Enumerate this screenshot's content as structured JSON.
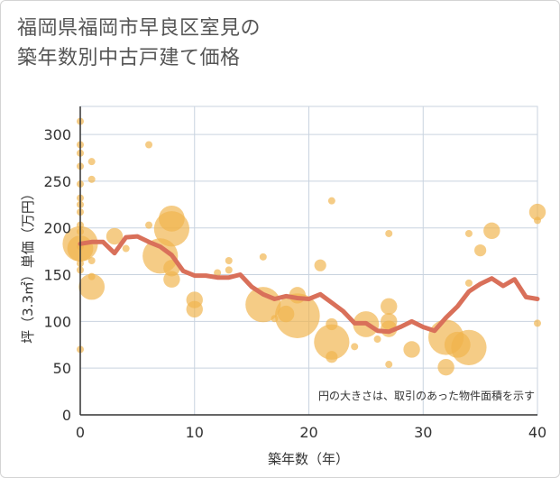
{
  "title": {
    "line1": "福岡県福岡市早良区室見の",
    "line2": "築年数別中古戸建て価格"
  },
  "chart_data": {
    "type": "scatter",
    "xlabel": "築年数（年）",
    "ylabel": "坪（3.3㎡）単価（万円）",
    "xlim": [
      0,
      40
    ],
    "ylim": [
      0,
      330
    ],
    "x_ticks": [
      0,
      10,
      20,
      30,
      40
    ],
    "y_ticks": [
      0,
      50,
      100,
      150,
      200,
      250,
      300
    ],
    "note": "円の大きさは、取引のあった物件面積を示す",
    "colors": {
      "bubble": "#f0b44c",
      "line": "#d9705a",
      "grid": "#c9d3df"
    },
    "bubbles": [
      {
        "x": 0,
        "y": 314,
        "s": 1
      },
      {
        "x": 0,
        "y": 289,
        "s": 1
      },
      {
        "x": 0,
        "y": 280,
        "s": 1
      },
      {
        "x": 0,
        "y": 266,
        "s": 1
      },
      {
        "x": 0,
        "y": 247,
        "s": 1
      },
      {
        "x": 0,
        "y": 232,
        "s": 1
      },
      {
        "x": 0,
        "y": 225,
        "s": 1
      },
      {
        "x": 0,
        "y": 217,
        "s": 1
      },
      {
        "x": 0,
        "y": 203,
        "s": 1
      },
      {
        "x": 0,
        "y": 196,
        "s": 1
      },
      {
        "x": 0,
        "y": 180,
        "s": 1
      },
      {
        "x": 0,
        "y": 162,
        "s": 1
      },
      {
        "x": 0,
        "y": 155,
        "s": 1
      },
      {
        "x": 0,
        "y": 70,
        "s": 1
      },
      {
        "x": 0,
        "y": 183,
        "s": 4
      },
      {
        "x": 0,
        "y": 178,
        "s": 3
      },
      {
        "x": 1,
        "y": 271,
        "s": 1
      },
      {
        "x": 1,
        "y": 252,
        "s": 1
      },
      {
        "x": 1,
        "y": 165,
        "s": 1
      },
      {
        "x": 1,
        "y": 148,
        "s": 1
      },
      {
        "x": 1,
        "y": 137,
        "s": 3
      },
      {
        "x": 3,
        "y": 191,
        "s": 2
      },
      {
        "x": 4,
        "y": 178,
        "s": 1
      },
      {
        "x": 6,
        "y": 289,
        "s": 1
      },
      {
        "x": 6,
        "y": 203,
        "s": 1
      },
      {
        "x": 7,
        "y": 170,
        "s": 4
      },
      {
        "x": 8,
        "y": 210,
        "s": 3
      },
      {
        "x": 8,
        "y": 199,
        "s": 4
      },
      {
        "x": 8,
        "y": 157,
        "s": 2
      },
      {
        "x": 8,
        "y": 145,
        "s": 2
      },
      {
        "x": 10,
        "y": 123,
        "s": 2
      },
      {
        "x": 10,
        "y": 113,
        "s": 2
      },
      {
        "x": 12,
        "y": 152,
        "s": 1
      },
      {
        "x": 13,
        "y": 165,
        "s": 1
      },
      {
        "x": 13,
        "y": 155,
        "s": 1
      },
      {
        "x": 16,
        "y": 118,
        "s": 4
      },
      {
        "x": 16,
        "y": 169,
        "s": 1
      },
      {
        "x": 17,
        "y": 103,
        "s": 1
      },
      {
        "x": 18,
        "y": 108,
        "s": 2
      },
      {
        "x": 19,
        "y": 128,
        "s": 2
      },
      {
        "x": 19,
        "y": 106,
        "s": 5
      },
      {
        "x": 21,
        "y": 160,
        "s": 1.5
      },
      {
        "x": 22,
        "y": 229,
        "s": 1
      },
      {
        "x": 22,
        "y": 97,
        "s": 1.5
      },
      {
        "x": 22,
        "y": 78,
        "s": 4
      },
      {
        "x": 22,
        "y": 62,
        "s": 1.5
      },
      {
        "x": 24,
        "y": 73,
        "s": 1
      },
      {
        "x": 25,
        "y": 97,
        "s": 3
      },
      {
        "x": 26,
        "y": 81,
        "s": 1
      },
      {
        "x": 27,
        "y": 194,
        "s": 1
      },
      {
        "x": 27,
        "y": 116,
        "s": 2
      },
      {
        "x": 27,
        "y": 100,
        "s": 2
      },
      {
        "x": 27,
        "y": 92,
        "s": 2
      },
      {
        "x": 27,
        "y": 54,
        "s": 1
      },
      {
        "x": 29,
        "y": 70,
        "s": 2
      },
      {
        "x": 32,
        "y": 83,
        "s": 4
      },
      {
        "x": 32,
        "y": 51,
        "s": 2
      },
      {
        "x": 33,
        "y": 75,
        "s": 3
      },
      {
        "x": 34,
        "y": 194,
        "s": 1
      },
      {
        "x": 34,
        "y": 141,
        "s": 1
      },
      {
        "x": 34,
        "y": 72,
        "s": 4
      },
      {
        "x": 35,
        "y": 176,
        "s": 1.5
      },
      {
        "x": 36,
        "y": 197,
        "s": 2
      },
      {
        "x": 40,
        "y": 217,
        "s": 2
      },
      {
        "x": 40,
        "y": 208,
        "s": 1
      },
      {
        "x": 40,
        "y": 98,
        "s": 1
      }
    ],
    "trend": {
      "x": [
        0,
        1,
        2,
        3,
        4,
        5,
        6,
        7,
        8,
        9,
        10,
        11,
        12,
        13,
        14,
        15,
        16,
        17,
        18,
        19,
        20,
        21,
        22,
        23,
        24,
        25,
        26,
        27,
        28,
        29,
        30,
        31,
        32,
        33,
        34,
        35,
        36,
        37,
        38,
        39,
        40
      ],
      "y": [
        183,
        185,
        185,
        173,
        190,
        191,
        185,
        180,
        171,
        154,
        149,
        149,
        147,
        147,
        150,
        137,
        129,
        124,
        127,
        125,
        124,
        129,
        120,
        111,
        98,
        98,
        90,
        89,
        94,
        100,
        94,
        90,
        104,
        116,
        132,
        140,
        146,
        138,
        145,
        126,
        124
      ]
    }
  }
}
